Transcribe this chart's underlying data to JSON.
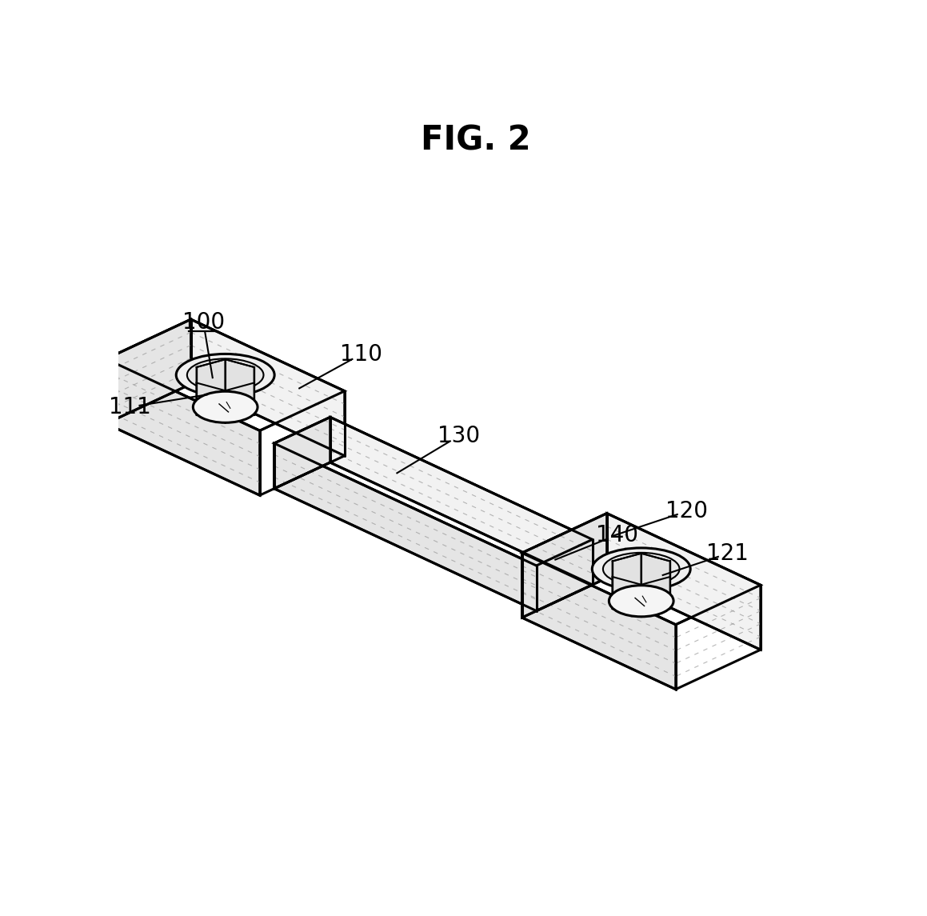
{
  "title": "FIG. 2",
  "title_fontsize": 30,
  "title_fontweight": "bold",
  "bg_color": "#ffffff",
  "line_color": "#000000",
  "lw_thick": 2.2,
  "lw_thin": 1.5,
  "lw_hatch": 0.8,
  "label_100": "100",
  "label_110": "110",
  "label_111": "111",
  "label_120": "120",
  "label_121": "121",
  "label_130": "130",
  "label_140": "140",
  "label_fontsize": 20,
  "face_white": "#ffffff",
  "face_light": "#f2f2f2",
  "face_mid": "#e5e5e5",
  "face_dark": "#d8d8d8"
}
